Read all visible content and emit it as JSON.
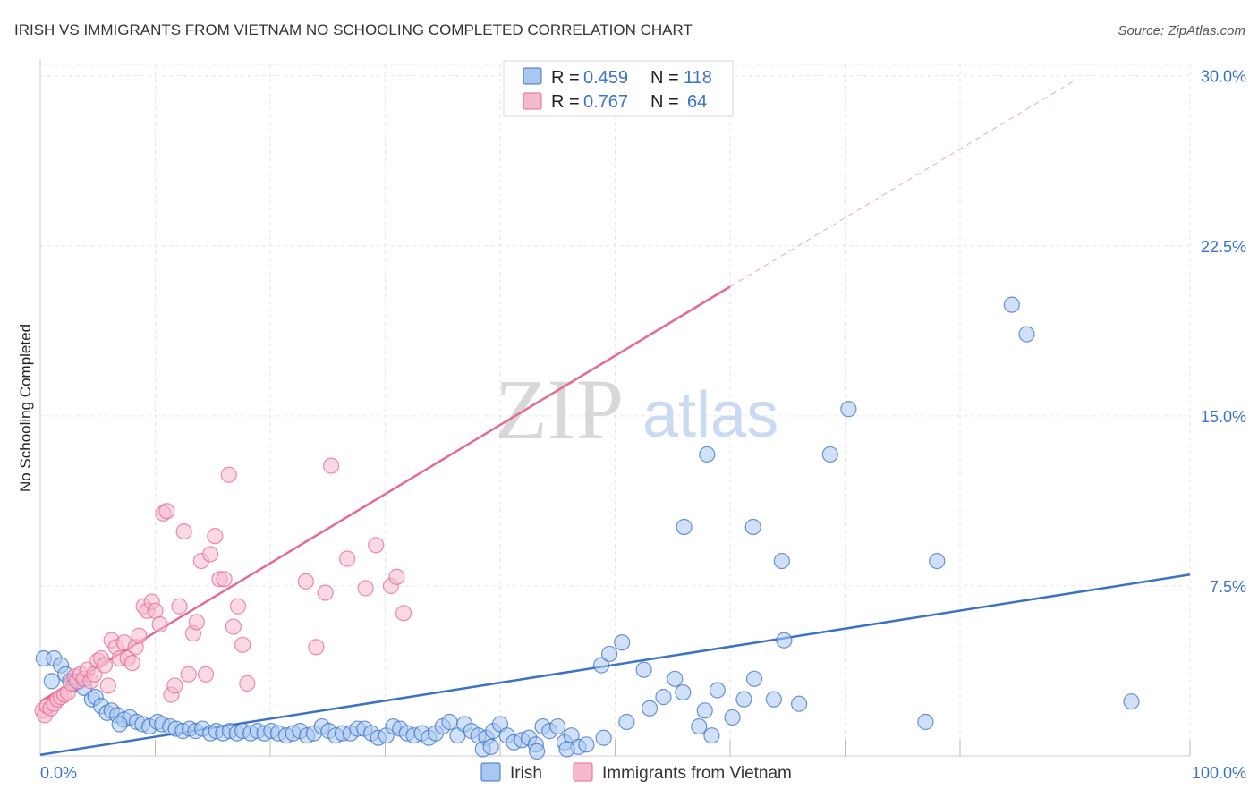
{
  "title": "IRISH VS IMMIGRANTS FROM VIETNAM NO SCHOOLING COMPLETED CORRELATION CHART",
  "source": "Source: ZipAtlas.com",
  "watermark": {
    "zip": "ZIP",
    "atlas": "atlas"
  },
  "colors": {
    "irish": "#3a72c9",
    "irish_fill": "#a9c8f0",
    "vietnam": "#e56a93",
    "vietnam_fill": "#f6b9cc",
    "grid": "#e6e6e6",
    "tick_text": "#3a72c9"
  },
  "legend": {
    "rows": [
      {
        "series": "irish",
        "r_label": "R =",
        "r_value": "0.459",
        "n_label": "N =",
        "n_value": "118"
      },
      {
        "series": "vietnam",
        "r_label": "R =",
        "r_value": "0.767",
        "n_label": "N =",
        "n_value": "64"
      }
    ]
  },
  "bottom_legend": {
    "irish": "Irish",
    "vietnam": "Immigrants from Vietnam"
  },
  "chart_data": {
    "type": "scatter",
    "title": "IRISH VS IMMIGRANTS FROM VIETNAM NO SCHOOLING COMPLETED CORRELATION CHART",
    "xlabel": "",
    "ylabel": "No Schooling Completed",
    "xlim": [
      0,
      100
    ],
    "ylim": [
      0,
      30.5
    ],
    "x_ticks": [
      "0.0%",
      "100.0%"
    ],
    "y_ticks": [
      {
        "value": 7.5,
        "label": "7.5%"
      },
      {
        "value": 15.0,
        "label": "15.0%"
      },
      {
        "value": 22.5,
        "label": "22.5%"
      },
      {
        "value": 30.0,
        "label": "30.0%"
      }
    ],
    "grid": true,
    "legend_position": "top-center",
    "series": [
      {
        "name": "Irish",
        "key": "irish",
        "trend": {
          "x": [
            0,
            100
          ],
          "y": [
            0.05,
            8.0
          ]
        },
        "points": [
          [
            0.3,
            4.3
          ],
          [
            1.2,
            4.3
          ],
          [
            1.8,
            4.0
          ],
          [
            2.2,
            3.6
          ],
          [
            2.6,
            3.3
          ],
          [
            3.0,
            3.2
          ],
          [
            3.4,
            3.3
          ],
          [
            3.8,
            3.0
          ],
          [
            4.5,
            2.5
          ],
          [
            4.8,
            2.6
          ],
          [
            5.3,
            2.2
          ],
          [
            5.8,
            1.9
          ],
          [
            6.2,
            2.0
          ],
          [
            6.7,
            1.8
          ],
          [
            7.3,
            1.6
          ],
          [
            7.8,
            1.7
          ],
          [
            8.4,
            1.5
          ],
          [
            8.9,
            1.4
          ],
          [
            9.5,
            1.3
          ],
          [
            10.2,
            1.5
          ],
          [
            10.6,
            1.4
          ],
          [
            11.3,
            1.3
          ],
          [
            11.8,
            1.2
          ],
          [
            12.4,
            1.1
          ],
          [
            13.0,
            1.2
          ],
          [
            13.5,
            1.1
          ],
          [
            14.1,
            1.2
          ],
          [
            14.8,
            1.0
          ],
          [
            15.3,
            1.1
          ],
          [
            15.9,
            1.0
          ],
          [
            16.5,
            1.1
          ],
          [
            17.1,
            1.0
          ],
          [
            17.6,
            1.1
          ],
          [
            18.3,
            1.0
          ],
          [
            18.9,
            1.1
          ],
          [
            19.5,
            1.0
          ],
          [
            20.1,
            1.1
          ],
          [
            20.7,
            1.0
          ],
          [
            21.4,
            0.9
          ],
          [
            22.0,
            1.0
          ],
          [
            22.6,
            1.1
          ],
          [
            23.2,
            0.9
          ],
          [
            23.8,
            1.0
          ],
          [
            24.5,
            1.3
          ],
          [
            25.1,
            1.1
          ],
          [
            25.7,
            0.9
          ],
          [
            26.3,
            1.0
          ],
          [
            27.0,
            1.0
          ],
          [
            27.6,
            1.2
          ],
          [
            28.2,
            1.2
          ],
          [
            28.8,
            1.0
          ],
          [
            29.4,
            0.8
          ],
          [
            30.1,
            0.9
          ],
          [
            30.7,
            1.3
          ],
          [
            31.3,
            1.2
          ],
          [
            31.9,
            1.0
          ],
          [
            32.5,
            0.9
          ],
          [
            33.2,
            1.0
          ],
          [
            33.8,
            0.8
          ],
          [
            34.4,
            1.0
          ],
          [
            35.0,
            1.3
          ],
          [
            35.6,
            1.5
          ],
          [
            36.3,
            0.9
          ],
          [
            36.9,
            1.4
          ],
          [
            37.5,
            1.1
          ],
          [
            38.1,
            0.9
          ],
          [
            38.8,
            0.8
          ],
          [
            39.4,
            1.1
          ],
          [
            40.0,
            1.4
          ],
          [
            40.6,
            0.9
          ],
          [
            41.2,
            0.6
          ],
          [
            41.9,
            0.7
          ],
          [
            42.5,
            0.8
          ],
          [
            43.1,
            0.5
          ],
          [
            43.7,
            1.3
          ],
          [
            44.3,
            1.1
          ],
          [
            45.0,
            1.3
          ],
          [
            45.6,
            0.6
          ],
          [
            46.2,
            0.9
          ],
          [
            46.8,
            0.4
          ],
          [
            47.5,
            0.5
          ],
          [
            43.2,
            0.2
          ],
          [
            38.5,
            0.3
          ],
          [
            39.2,
            0.4
          ],
          [
            45.8,
            0.3
          ],
          [
            48.8,
            4.0
          ],
          [
            49.5,
            4.5
          ],
          [
            50.6,
            5.0
          ],
          [
            52.5,
            3.8
          ],
          [
            53.0,
            2.1
          ],
          [
            54.2,
            2.6
          ],
          [
            55.2,
            3.4
          ],
          [
            55.9,
            2.8
          ],
          [
            57.3,
            1.3
          ],
          [
            57.8,
            2.0
          ],
          [
            58.4,
            0.9
          ],
          [
            58.9,
            2.9
          ],
          [
            60.2,
            1.7
          ],
          [
            61.2,
            2.5
          ],
          [
            62.1,
            3.4
          ],
          [
            63.8,
            2.5
          ],
          [
            64.7,
            5.1
          ],
          [
            51.0,
            1.5
          ],
          [
            49.0,
            0.8
          ],
          [
            66.0,
            2.3
          ],
          [
            56.0,
            10.1
          ],
          [
            62.0,
            10.1
          ],
          [
            58.0,
            13.3
          ],
          [
            64.5,
            8.6
          ],
          [
            68.7,
            13.3
          ],
          [
            70.3,
            15.3
          ],
          [
            78.0,
            8.6
          ],
          [
            77.0,
            1.5
          ],
          [
            84.5,
            19.9
          ],
          [
            85.8,
            18.6
          ],
          [
            94.9,
            2.4
          ],
          [
            1.0,
            3.3
          ],
          [
            6.9,
            1.4
          ]
        ]
      },
      {
        "name": "Immigrants from Vietnam",
        "key": "vietnam",
        "trend": {
          "x": [
            0,
            60
          ],
          "y": [
            2.4,
            20.7
          ]
        },
        "trend_dashed": {
          "x": [
            60,
            90
          ],
          "y": [
            20.7,
            29.8
          ]
        },
        "points": [
          [
            0.2,
            2.0
          ],
          [
            0.4,
            1.8
          ],
          [
            0.6,
            2.2
          ],
          [
            0.9,
            2.1
          ],
          [
            1.2,
            2.3
          ],
          [
            1.5,
            2.5
          ],
          [
            1.8,
            2.6
          ],
          [
            2.1,
            2.7
          ],
          [
            2.4,
            2.8
          ],
          [
            2.7,
            3.2
          ],
          [
            3.0,
            3.5
          ],
          [
            3.2,
            3.3
          ],
          [
            3.5,
            3.6
          ],
          [
            3.8,
            3.4
          ],
          [
            4.1,
            3.8
          ],
          [
            4.4,
            3.3
          ],
          [
            4.7,
            3.6
          ],
          [
            5.0,
            4.2
          ],
          [
            5.3,
            4.3
          ],
          [
            5.6,
            4.0
          ],
          [
            5.9,
            3.1
          ],
          [
            6.2,
            5.1
          ],
          [
            6.6,
            4.8
          ],
          [
            6.9,
            4.3
          ],
          [
            7.3,
            5.0
          ],
          [
            7.6,
            4.3
          ],
          [
            8.0,
            4.1
          ],
          [
            8.3,
            4.8
          ],
          [
            8.6,
            5.3
          ],
          [
            9.0,
            6.6
          ],
          [
            9.3,
            6.4
          ],
          [
            9.7,
            6.8
          ],
          [
            10.0,
            6.4
          ],
          [
            10.4,
            5.8
          ],
          [
            10.7,
            10.7
          ],
          [
            11.0,
            10.8
          ],
          [
            11.4,
            2.7
          ],
          [
            11.7,
            3.1
          ],
          [
            12.1,
            6.6
          ],
          [
            12.5,
            9.9
          ],
          [
            12.9,
            3.6
          ],
          [
            13.3,
            5.4
          ],
          [
            13.6,
            5.9
          ],
          [
            14.0,
            8.6
          ],
          [
            14.4,
            3.6
          ],
          [
            14.8,
            8.9
          ],
          [
            15.2,
            9.7
          ],
          [
            15.6,
            7.8
          ],
          [
            16.0,
            7.8
          ],
          [
            16.4,
            12.4
          ],
          [
            16.8,
            5.7
          ],
          [
            17.2,
            6.6
          ],
          [
            17.6,
            4.9
          ],
          [
            18.0,
            3.2
          ],
          [
            23.1,
            7.7
          ],
          [
            24.0,
            4.8
          ],
          [
            24.8,
            7.2
          ],
          [
            25.3,
            12.8
          ],
          [
            26.7,
            8.7
          ],
          [
            28.3,
            7.4
          ],
          [
            29.2,
            9.3
          ],
          [
            30.5,
            7.5
          ],
          [
            31.0,
            7.9
          ],
          [
            31.6,
            6.3
          ]
        ]
      }
    ]
  }
}
